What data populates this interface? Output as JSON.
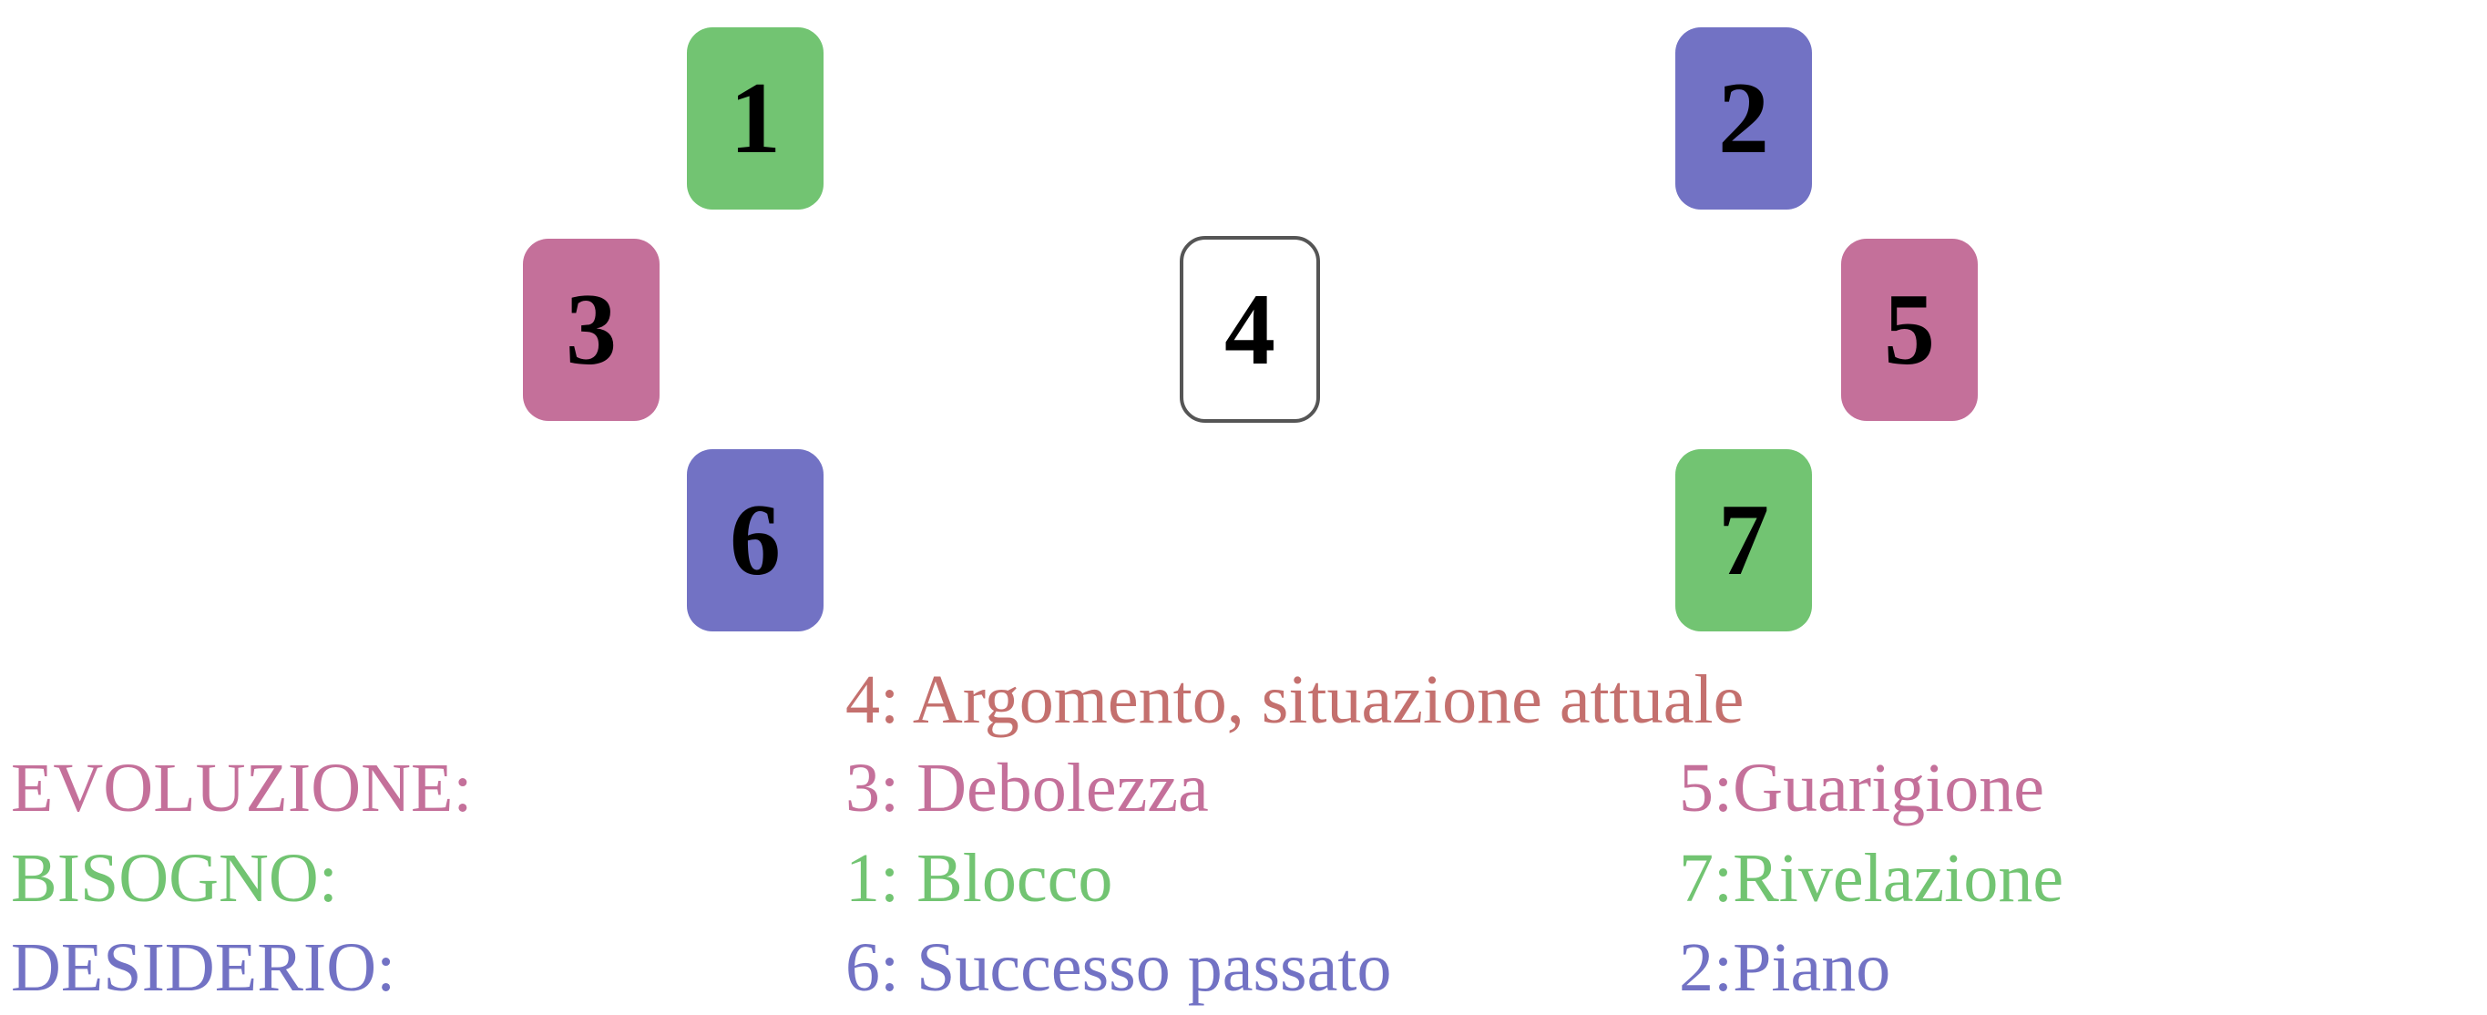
{
  "colors": {
    "evoluzione": "#c4709a",
    "bisogno": "#72c472",
    "desiderio": "#7272c4",
    "argomento": "#c4706e",
    "outline": "#555555"
  },
  "cards": {
    "c1": {
      "label": "1",
      "color": "#72c472"
    },
    "c2": {
      "label": "2",
      "color": "#7272c4"
    },
    "c3": {
      "label": "3",
      "color": "#c4709a"
    },
    "c4": {
      "label": "4",
      "color": "#ffffff"
    },
    "c5": {
      "label": "5",
      "color": "#c4709a"
    },
    "c6": {
      "label": "6",
      "color": "#7272c4"
    },
    "c7": {
      "label": "7",
      "color": "#72c472"
    }
  },
  "legend": {
    "argomento": "4: Argomento, situazione attuale",
    "evoluzione": {
      "label": "EVOLUZIONE:",
      "left": "3: Debolezza",
      "right": "5:Guarigione"
    },
    "bisogno": {
      "label": "BISOGNO:",
      "left": "1: Blocco",
      "right": "7:Rivelazione"
    },
    "desiderio": {
      "label": "DESIDERIO:",
      "left": "6: Successo passato",
      "right": "2:Piano"
    }
  }
}
